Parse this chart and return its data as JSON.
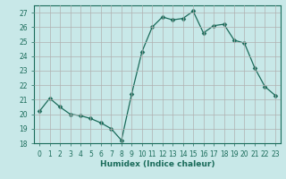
{
  "x": [
    0,
    1,
    2,
    3,
    4,
    5,
    6,
    7,
    8,
    9,
    10,
    11,
    12,
    13,
    14,
    15,
    16,
    17,
    18,
    19,
    20,
    21,
    22,
    23
  ],
  "y": [
    20.2,
    21.1,
    20.5,
    20.0,
    19.9,
    19.7,
    19.4,
    19.0,
    18.2,
    21.4,
    24.3,
    26.0,
    26.7,
    26.5,
    26.6,
    27.1,
    25.6,
    26.1,
    26.2,
    25.1,
    24.9,
    23.2,
    21.9,
    21.3
  ],
  "line_color": "#1a6b5a",
  "marker": "D",
  "marker_size": 2.5,
  "bg_color": "#c8e8e8",
  "grid_color": "#b0b0b0",
  "xlabel": "Humidex (Indice chaleur)",
  "ylim": [
    18,
    27.5
  ],
  "yticks": [
    18,
    19,
    20,
    21,
    22,
    23,
    24,
    25,
    26,
    27
  ],
  "xticks": [
    0,
    1,
    2,
    3,
    4,
    5,
    6,
    7,
    8,
    9,
    10,
    11,
    12,
    13,
    14,
    15,
    16,
    17,
    18,
    19,
    20,
    21,
    22,
    23
  ],
  "tick_label_fontsize": 5.5,
  "xlabel_fontsize": 6.5
}
